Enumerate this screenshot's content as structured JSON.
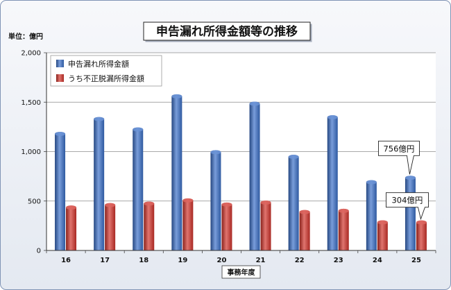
{
  "chart_data": {
    "type": "bar",
    "title": "申告漏れ所得金額等の推移",
    "unit_label": "単位：億円",
    "xlabel": "事務年度",
    "categories": [
      "16",
      "17",
      "18",
      "19",
      "20",
      "21",
      "22",
      "23",
      "24",
      "25"
    ],
    "series": [
      {
        "name": "申告漏れ所得金額",
        "color": "#3a6fc8",
        "values": [
          1200,
          1350,
          1245,
          1580,
          1015,
          1505,
          968,
          1368,
          711,
          756
        ]
      },
      {
        "name": "うち不正脱漏所得金額",
        "color": "#d2322a",
        "values": [
          455,
          480,
          495,
          527,
          485,
          505,
          410,
          422,
          305,
          304
        ]
      }
    ],
    "ylim": [
      0,
      2000
    ],
    "yticks": [
      0,
      500,
      1000,
      1500,
      2000
    ],
    "ytick_labels": [
      "0",
      "500",
      "1,000",
      "1,500",
      "2,000"
    ],
    "grid": true,
    "legend": "top-left",
    "annotations": [
      {
        "text": "756億円",
        "x": "25",
        "y": 756
      },
      {
        "text": "304億円",
        "x": "25",
        "y": 304
      }
    ]
  }
}
